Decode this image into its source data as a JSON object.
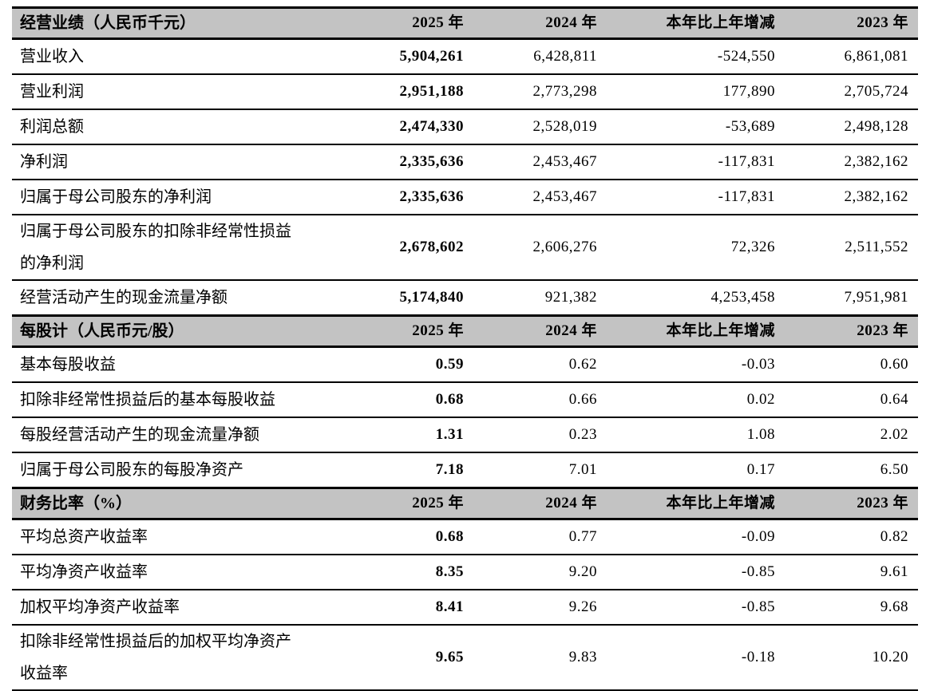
{
  "table": {
    "columns": [
      "2025 年",
      "2024 年",
      "本年比上年增减",
      "2023 年"
    ],
    "sections": [
      {
        "title": "经营业绩（人民币千元）",
        "columns": [
          "2025 年",
          "2024 年",
          "本年比上年增减",
          "2023 年"
        ],
        "rows": [
          {
            "label": "营业收入",
            "values": [
              "5,904,261",
              "6,428,811",
              "-524,550",
              "6,861,081"
            ]
          },
          {
            "label": "营业利润",
            "values": [
              "2,951,188",
              "2,773,298",
              "177,890",
              "2,705,724"
            ]
          },
          {
            "label": "利润总额",
            "values": [
              "2,474,330",
              "2,528,019",
              "-53,689",
              "2,498,128"
            ]
          },
          {
            "label": "净利润",
            "values": [
              "2,335,636",
              "2,453,467",
              "-117,831",
              "2,382,162"
            ]
          },
          {
            "label": "归属于母公司股东的净利润",
            "values": [
              "2,335,636",
              "2,453,467",
              "-117,831",
              "2,382,162"
            ]
          },
          {
            "label": "归属于母公司股东的扣除非经常性损益的净利润",
            "label_lines": [
              "归属于母公司股东的扣除非经常性损益",
              "的净利润"
            ],
            "values": [
              "2,678,602",
              "2,606,276",
              "72,326",
              "2,511,552"
            ]
          },
          {
            "label": "经营活动产生的现金流量净额",
            "values": [
              "5,174,840",
              "921,382",
              "4,253,458",
              "7,951,981"
            ]
          }
        ]
      },
      {
        "title": "每股计（人民币元/股）",
        "columns": [
          "2025 年",
          "2024 年",
          "本年比上年增减",
          "2023 年"
        ],
        "rows": [
          {
            "label": "基本每股收益",
            "values": [
              "0.59",
              "0.62",
              "-0.03",
              "0.60"
            ]
          },
          {
            "label": "扣除非经常性损益后的基本每股收益",
            "values": [
              "0.68",
              "0.66",
              "0.02",
              "0.64"
            ]
          },
          {
            "label": "每股经营活动产生的现金流量净额",
            "values": [
              "1.31",
              "0.23",
              "1.08",
              "2.02"
            ]
          },
          {
            "label": "归属于母公司股东的每股净资产",
            "values": [
              "7.18",
              "7.01",
              "0.17",
              "6.50"
            ]
          }
        ]
      },
      {
        "title": "财务比率（%）",
        "columns": [
          "2025 年",
          "2024 年",
          "本年比上年增减",
          "2023 年"
        ],
        "rows": [
          {
            "label": "平均总资产收益率",
            "values": [
              "0.68",
              "0.77",
              "-0.09",
              "0.82"
            ]
          },
          {
            "label": "平均净资产收益率",
            "values": [
              "8.35",
              "9.20",
              "-0.85",
              "9.61"
            ]
          },
          {
            "label": "加权平均净资产收益率",
            "values": [
              "8.41",
              "9.26",
              "-0.85",
              "9.68"
            ]
          },
          {
            "label": "扣除非经常性损益后的加权平均净资产收益率",
            "label_lines": [
              "扣除非经常性损益后的加权平均净资产",
              "收益率"
            ],
            "values": [
              "9.65",
              "9.83",
              "-0.18",
              "10.20"
            ]
          }
        ]
      }
    ]
  }
}
